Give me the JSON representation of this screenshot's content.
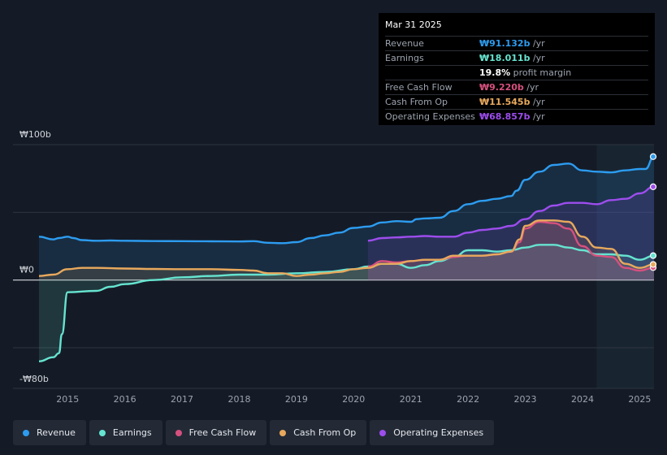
{
  "tooltip": {
    "date": "Mar 31 2025",
    "rows": [
      {
        "label": "Revenue",
        "value": "₩91.132b",
        "unit": " /yr",
        "color": "#2d9cf0"
      },
      {
        "label": "Earnings",
        "value": "₩18.011b",
        "unit": " /yr",
        "color": "#66e4d0"
      },
      {
        "label": "",
        "value": "19.8%",
        "unit": " profit margin",
        "color": "#ffffff"
      },
      {
        "label": "Free Cash Flow",
        "value": "₩9.220b",
        "unit": " /yr",
        "color": "#d6507e"
      },
      {
        "label": "Cash From Op",
        "value": "₩11.545b",
        "unit": " /yr",
        "color": "#e8a95d"
      },
      {
        "label": "Operating Expenses",
        "value": "₩68.857b",
        "unit": " /yr",
        "color": "#9d4ded"
      }
    ]
  },
  "legend": [
    {
      "label": "Revenue",
      "color": "#2d9cf0"
    },
    {
      "label": "Earnings",
      "color": "#66e4d0"
    },
    {
      "label": "Free Cash Flow",
      "color": "#d6507e"
    },
    {
      "label": "Cash From Op",
      "color": "#e8a95d"
    },
    {
      "label": "Operating Expenses",
      "color": "#9d4ded"
    }
  ],
  "chart_data": {
    "type": "line",
    "title": "",
    "xlabel": "",
    "ylabel": "",
    "currency": "₩",
    "ylim": [
      -80,
      100
    ],
    "y_tick_labels": [
      {
        "value": 100,
        "label": "₩100b"
      },
      {
        "value": 0,
        "label": "₩0"
      },
      {
        "value": -80,
        "label": "-₩80b"
      }
    ],
    "x_tick_labels": [
      "2015",
      "2016",
      "2017",
      "2018",
      "2019",
      "2020",
      "2021",
      "2022",
      "2023",
      "2024",
      "2025"
    ],
    "xlim": [
      2014.5,
      2025.25
    ],
    "highlight_start": 2024.25,
    "series": [
      {
        "name": "Revenue",
        "color": "#2d9cf0",
        "x": [
          2014.5,
          2014.75,
          2014.85,
          2015,
          2015.1,
          2015.25,
          2015.5,
          2015.75,
          2016,
          2016.5,
          2017,
          2017.5,
          2018,
          2018.25,
          2018.5,
          2018.75,
          2019,
          2019.25,
          2019.5,
          2019.75,
          2020,
          2020.25,
          2020.5,
          2020.75,
          2021,
          2021.1,
          2021.25,
          2021.5,
          2021.75,
          2022,
          2022.25,
          2022.5,
          2022.75,
          2022.85,
          2023,
          2023.25,
          2023.5,
          2023.75,
          2024,
          2024.25,
          2024.5,
          2024.75,
          2025,
          2025.1,
          2025.25
        ],
        "values": [
          32,
          30,
          31,
          32,
          31,
          29.5,
          29,
          29.2,
          29,
          28.8,
          28.7,
          28.6,
          28.5,
          28.7,
          27.5,
          27.2,
          28,
          31,
          33,
          35,
          38.5,
          39.5,
          42.5,
          43.5,
          43,
          45,
          45.5,
          46,
          51,
          56,
          58.5,
          60,
          62,
          66,
          74,
          80,
          85,
          86,
          81,
          80,
          79.5,
          81,
          82,
          82,
          91.132
        ]
      },
      {
        "name": "Earnings",
        "color": "#66e4d0",
        "x": [
          2014.5,
          2014.75,
          2014.85,
          2014.9,
          2015,
          2015.5,
          2015.75,
          2016,
          2016.5,
          2017,
          2017.5,
          2018,
          2018.5,
          2019,
          2019.5,
          2020,
          2020.25,
          2020.5,
          2020.75,
          2021,
          2021.25,
          2021.5,
          2021.75,
          2022,
          2022.25,
          2022.5,
          2022.75,
          2023,
          2023.25,
          2023.5,
          2023.75,
          2024,
          2024.25,
          2024.5,
          2024.75,
          2025,
          2025.25
        ],
        "values": [
          -60,
          -57,
          -54,
          -40,
          -9,
          -8,
          -5,
          -3,
          0,
          2,
          3,
          4,
          4,
          5,
          6,
          8,
          10,
          12,
          12,
          9,
          11,
          14,
          17,
          22,
          22,
          21,
          22,
          24,
          26,
          26,
          24,
          22,
          19,
          19,
          18,
          15,
          18.011
        ]
      },
      {
        "name": "Free Cash Flow",
        "color": "#d6507e",
        "x": [
          2020.25,
          2020.5,
          2020.75,
          2021,
          2021.25,
          2021.5,
          2021.75,
          2022,
          2022.25,
          2022.5,
          2022.75,
          2022.9,
          2023,
          2023.25,
          2023.5,
          2023.75,
          2024,
          2024.25,
          2024.5,
          2024.75,
          2025,
          2025.25
        ],
        "values": [
          10,
          14,
          13,
          14,
          15,
          15,
          17,
          18,
          18,
          19,
          21,
          28,
          38,
          43,
          42,
          38,
          25,
          18,
          17,
          9,
          7,
          9.22
        ]
      },
      {
        "name": "Cash From Op",
        "color": "#e8a95d",
        "x": [
          2014.5,
          2014.75,
          2015,
          2015.25,
          2015.5,
          2016,
          2016.5,
          2017,
          2017.5,
          2018,
          2018.25,
          2018.5,
          2018.75,
          2019,
          2019.25,
          2019.5,
          2019.75,
          2020,
          2020.25,
          2020.5,
          2020.75,
          2021,
          2021.25,
          2021.5,
          2021.75,
          2022,
          2022.25,
          2022.5,
          2022.75,
          2022.9,
          2023,
          2023.25,
          2023.5,
          2023.75,
          2024,
          2024.25,
          2024.5,
          2024.75,
          2025,
          2025.25
        ],
        "values": [
          3,
          4,
          8,
          9,
          9,
          8.5,
          8.2,
          8,
          8,
          7.5,
          7,
          5,
          5,
          3,
          4,
          5,
          6,
          8,
          9,
          12,
          12,
          14,
          15,
          15,
          18,
          18,
          18,
          19,
          21,
          30,
          40,
          44,
          44,
          43,
          32,
          24,
          23,
          12,
          9,
          11.545
        ]
      },
      {
        "name": "Operating Expenses",
        "color": "#9d4ded",
        "x": [
          2020.25,
          2020.5,
          2020.75,
          2021,
          2021.25,
          2021.5,
          2021.75,
          2022,
          2022.25,
          2022.5,
          2022.75,
          2023,
          2023.25,
          2023.5,
          2023.75,
          2024,
          2024.25,
          2024.5,
          2024.75,
          2025,
          2025.25
        ],
        "values": [
          29,
          31,
          31.5,
          32,
          32.5,
          32,
          32,
          35,
          37,
          38,
          40,
          45,
          51,
          55,
          57,
          57,
          56,
          59,
          60,
          64,
          68.857
        ]
      }
    ]
  }
}
